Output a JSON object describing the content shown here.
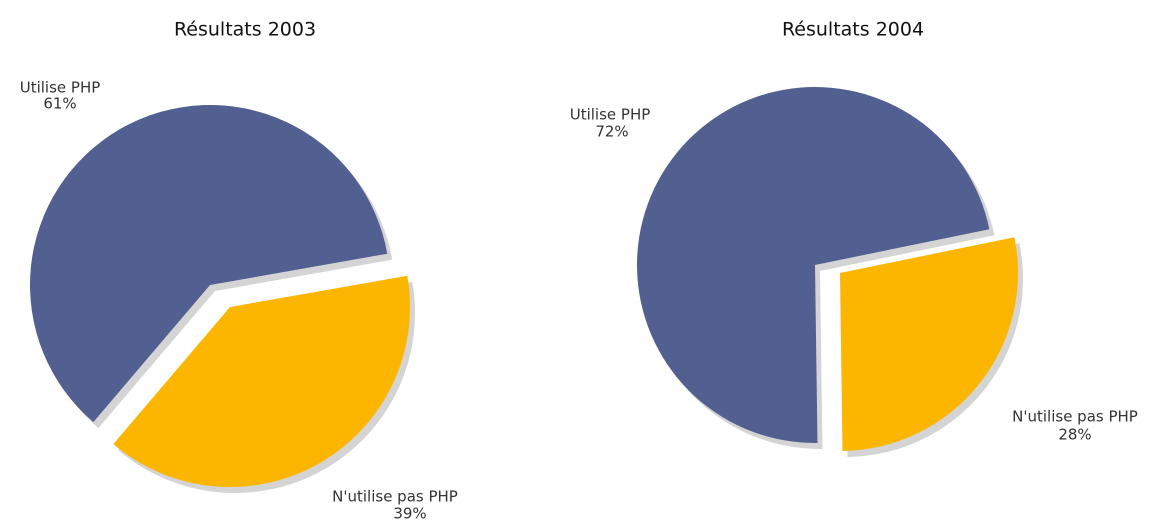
{
  "chart_data": [
    {
      "type": "pie",
      "title": "Résultats 2003",
      "categories": [
        "Utilise PHP",
        "N'utilise pas PHP"
      ],
      "values": [
        61,
        39
      ],
      "value_labels": [
        "61%",
        "39%"
      ],
      "colors": [
        "#515f91",
        "#fdb600"
      ]
    },
    {
      "type": "pie",
      "title": "Résultats 2004",
      "categories": [
        "Utilise PHP",
        "N'utilise pas PHP"
      ],
      "values": [
        72,
        28
      ],
      "value_labels": [
        "72%",
        "28%"
      ],
      "colors": [
        "#515f91",
        "#fdb600"
      ]
    }
  ]
}
